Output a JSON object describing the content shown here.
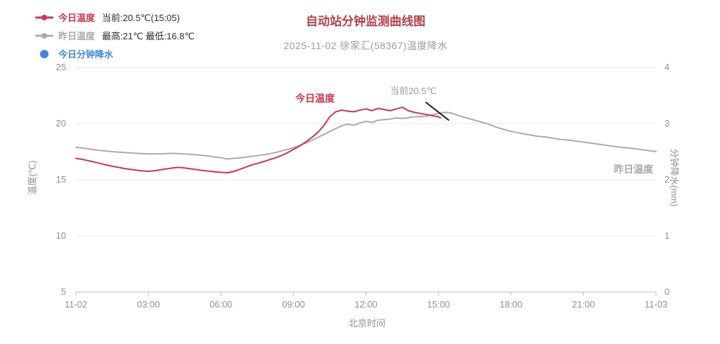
{
  "chart_data": {
    "type": "line",
    "title": "自动站分钟监测曲线图",
    "subtitle": "2025-11-02 徐家汇(58367)温度降水",
    "xlabel": "北京时间",
    "ylabel_left": "温度(℃)",
    "ylabel_right": "分钟降水(mm)",
    "grid": true,
    "legend_position": "top-left",
    "x_ticks": [
      {
        "hour": 0,
        "label": "11-02"
      },
      {
        "hour": 3,
        "label": "03:00"
      },
      {
        "hour": 6,
        "label": "06:00"
      },
      {
        "hour": 9,
        "label": "09:00"
      },
      {
        "hour": 12,
        "label": "12:00"
      },
      {
        "hour": 15,
        "label": "15:00"
      },
      {
        "hour": 18,
        "label": "18:00"
      },
      {
        "hour": 21,
        "label": "21:00"
      },
      {
        "hour": 24,
        "label": "11-03"
      }
    ],
    "y_left": {
      "min": 5,
      "max": 25,
      "ticks": [
        25,
        20,
        15,
        10,
        5
      ]
    },
    "y_right": {
      "min": 0,
      "max": 4,
      "ticks": [
        4,
        3,
        2,
        1,
        0
      ]
    },
    "series": [
      {
        "name": "今日温度",
        "color": "#c9374e",
        "axis": "left",
        "unit": "℃",
        "points": [
          [
            0,
            16.9
          ],
          [
            0.25,
            16.82
          ],
          [
            0.5,
            16.7
          ],
          [
            0.75,
            16.58
          ],
          [
            1,
            16.45
          ],
          [
            1.25,
            16.32
          ],
          [
            1.5,
            16.2
          ],
          [
            1.75,
            16.1
          ],
          [
            2,
            16.0
          ],
          [
            2.25,
            15.92
          ],
          [
            2.5,
            15.85
          ],
          [
            2.75,
            15.78
          ],
          [
            3,
            15.75
          ],
          [
            3.25,
            15.8
          ],
          [
            3.5,
            15.88
          ],
          [
            3.75,
            15.97
          ],
          [
            4,
            16.05
          ],
          [
            4.25,
            16.1
          ],
          [
            4.5,
            16.05
          ],
          [
            4.75,
            15.97
          ],
          [
            5,
            15.9
          ],
          [
            5.25,
            15.82
          ],
          [
            5.5,
            15.76
          ],
          [
            5.75,
            15.7
          ],
          [
            6,
            15.66
          ],
          [
            6.25,
            15.62
          ],
          [
            6.5,
            15.72
          ],
          [
            6.75,
            15.9
          ],
          [
            7,
            16.1
          ],
          [
            7.25,
            16.3
          ],
          [
            7.5,
            16.45
          ],
          [
            7.75,
            16.6
          ],
          [
            8,
            16.78
          ],
          [
            8.25,
            16.95
          ],
          [
            8.5,
            17.15
          ],
          [
            8.75,
            17.4
          ],
          [
            9,
            17.7
          ],
          [
            9.25,
            18.0
          ],
          [
            9.5,
            18.35
          ],
          [
            9.75,
            18.75
          ],
          [
            10,
            19.2
          ],
          [
            10.25,
            19.8
          ],
          [
            10.5,
            20.6
          ],
          [
            10.75,
            21.05
          ],
          [
            11,
            21.2
          ],
          [
            11.25,
            21.1
          ],
          [
            11.5,
            21.05
          ],
          [
            11.75,
            21.2
          ],
          [
            12,
            21.3
          ],
          [
            12.25,
            21.15
          ],
          [
            12.5,
            21.35
          ],
          [
            12.75,
            21.25
          ],
          [
            13,
            21.15
          ],
          [
            13.25,
            21.3
          ],
          [
            13.5,
            21.45
          ],
          [
            13.75,
            21.15
          ],
          [
            14,
            21.0
          ],
          [
            14.25,
            20.9
          ],
          [
            14.5,
            20.8
          ],
          [
            14.75,
            20.7
          ],
          [
            15,
            20.6
          ],
          [
            15.08,
            20.5
          ]
        ]
      },
      {
        "name": "昨日温度",
        "color": "#ababab",
        "axis": "left",
        "unit": "℃",
        "points": [
          [
            0,
            17.9
          ],
          [
            0.5,
            17.75
          ],
          [
            1,
            17.6
          ],
          [
            1.5,
            17.5
          ],
          [
            2,
            17.42
          ],
          [
            2.5,
            17.35
          ],
          [
            3,
            17.3
          ],
          [
            3.5,
            17.3
          ],
          [
            4,
            17.35
          ],
          [
            4.5,
            17.3
          ],
          [
            5,
            17.22
          ],
          [
            5.5,
            17.1
          ],
          [
            6,
            16.95
          ],
          [
            6.25,
            16.85
          ],
          [
            6.5,
            16.9
          ],
          [
            7,
            17.0
          ],
          [
            7.5,
            17.15
          ],
          [
            8,
            17.3
          ],
          [
            8.5,
            17.55
          ],
          [
            9,
            17.85
          ],
          [
            9.5,
            18.25
          ],
          [
            10,
            18.75
          ],
          [
            10.5,
            19.3
          ],
          [
            10.75,
            19.55
          ],
          [
            11,
            19.8
          ],
          [
            11.25,
            19.95
          ],
          [
            11.5,
            19.85
          ],
          [
            11.75,
            20.05
          ],
          [
            12,
            20.2
          ],
          [
            12.25,
            20.1
          ],
          [
            12.5,
            20.3
          ],
          [
            13,
            20.4
          ],
          [
            13.25,
            20.5
          ],
          [
            13.5,
            20.45
          ],
          [
            14,
            20.6
          ],
          [
            14.5,
            20.65
          ],
          [
            14.75,
            20.8
          ],
          [
            15,
            20.9
          ],
          [
            15.25,
            21.0
          ],
          [
            15.5,
            20.95
          ],
          [
            16,
            20.6
          ],
          [
            16.5,
            20.3
          ],
          [
            17,
            20.0
          ],
          [
            17.5,
            19.6
          ],
          [
            18,
            19.3
          ],
          [
            18.5,
            19.1
          ],
          [
            19,
            18.9
          ],
          [
            19.5,
            18.78
          ],
          [
            20,
            18.6
          ],
          [
            20.5,
            18.5
          ],
          [
            21,
            18.35
          ],
          [
            21.5,
            18.2
          ],
          [
            22,
            18.05
          ],
          [
            22.5,
            17.9
          ],
          [
            23,
            17.8
          ],
          [
            23.5,
            17.65
          ],
          [
            24,
            17.5
          ]
        ]
      },
      {
        "name": "今日分钟降水",
        "color": "#3d88d8",
        "axis": "right",
        "unit": "mm",
        "points": []
      }
    ],
    "annotations": [
      {
        "text": "今日温度",
        "color": "#c9374e"
      },
      {
        "text": "当前20.5℃",
        "color": "#9a9a9a"
      },
      {
        "text": "昨日温度",
        "color": "#a8a8a8"
      }
    ]
  },
  "legend": {
    "items": [
      {
        "info": "当前:20.5℃(15:05)"
      },
      {
        "info": "最高:21℃ 最低:16.8℃"
      },
      {
        "info": ""
      }
    ]
  }
}
